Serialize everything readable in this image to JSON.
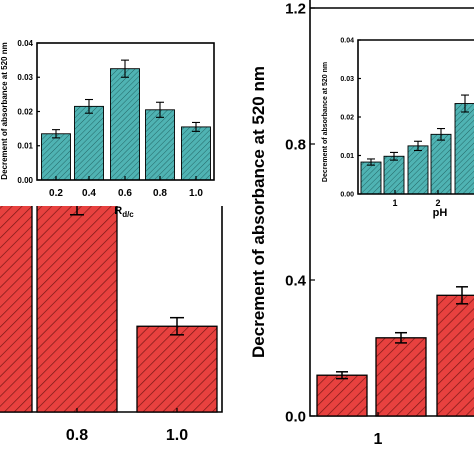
{
  "colors": {
    "main_bar": "#e8413f",
    "main_hatch": "#7a1715",
    "inset_bar": "#4fb3b3",
    "inset_hatch": "#1f5e5e"
  },
  "chart_data": [
    {
      "id": "left-main",
      "type": "bar",
      "title": "",
      "categories": [
        "",
        "0.8",
        "1.0"
      ],
      "values": [
        0.65,
        0.51,
        0.2
      ],
      "errors": [
        0.02,
        0.05,
        0.02
      ],
      "x_tick_labels": [
        "0.8",
        "1.0"
      ],
      "xlabel": "",
      "ylabel": "",
      "cropped": true
    },
    {
      "id": "left-inset",
      "type": "bar",
      "title": "",
      "categories": [
        "0.2",
        "0.4",
        "0.6",
        "0.8",
        "1.0"
      ],
      "values": [
        0.0135,
        0.0215,
        0.0325,
        0.0205,
        0.0155
      ],
      "errors": [
        0.0012,
        0.002,
        0.0025,
        0.0022,
        0.0013
      ],
      "xlabel": "Rd/c",
      "ylabel": "Decrement of absorbance at 520 nm",
      "ylim": [
        0,
        0.04
      ],
      "y_ticks": [
        "0.00",
        "0.01",
        "0.02",
        "0.03",
        "0.04"
      ]
    },
    {
      "id": "right-main",
      "type": "bar",
      "title": "",
      "categories": [
        "",
        "",
        ""
      ],
      "values": [
        0.12,
        0.23,
        0.355
      ],
      "errors": [
        0.01,
        0.015,
        0.025
      ],
      "x_tick_labels": [
        "1"
      ],
      "xlabel": "",
      "ylabel": "Decrement of absorbance at 520 nm",
      "ylim": [
        0,
        1.2
      ],
      "y_ticks": [
        "0.0",
        "0.4",
        "0.8",
        "1.2"
      ],
      "cropped": true
    },
    {
      "id": "right-inset",
      "type": "bar",
      "title": "",
      "categories": [
        "",
        "1",
        "",
        "2",
        ""
      ],
      "values": [
        0.0083,
        0.0098,
        0.0125,
        0.0155,
        0.0235
      ],
      "errors": [
        0.0008,
        0.001,
        0.0012,
        0.0015,
        0.0022
      ],
      "xlabel": "pH",
      "ylabel": "Decrement of absorbance at 520 nm",
      "ylim": [
        0,
        0.04
      ],
      "y_ticks": [
        "0.00",
        "0.01",
        "0.02",
        "0.03",
        "0.04"
      ],
      "cropped": true
    }
  ]
}
